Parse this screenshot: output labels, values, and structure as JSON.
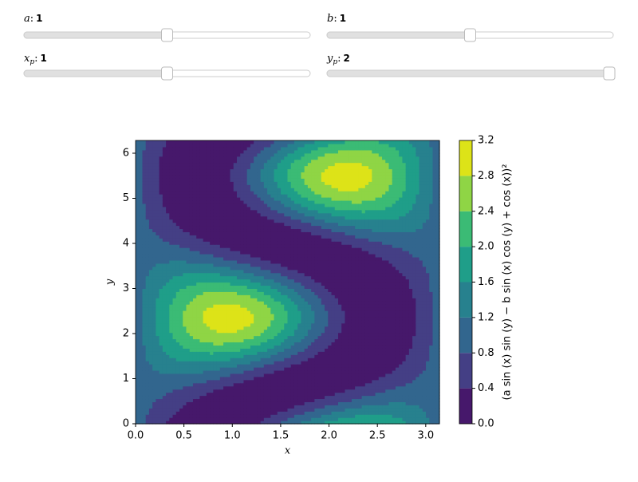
{
  "separator": ":",
  "sliders": [
    {
      "name": "a",
      "value": 1,
      "min": 0,
      "max": 2
    },
    {
      "name": "b",
      "value": 1,
      "min": 0,
      "max": 2
    },
    {
      "name": "x",
      "subscript": "p",
      "value": 1,
      "min": 0,
      "max": 2
    },
    {
      "name": "y",
      "subscript": "p",
      "value": 2,
      "min": 0,
      "max": 2
    }
  ],
  "chart_data": {
    "type": "contourf",
    "xlabel": "x",
    "ylabel": "y",
    "xlim": [
      0,
      3.14159
    ],
    "ylim": [
      0,
      6.28319
    ],
    "xticks": [
      {
        "value": 0,
        "label": "0.0"
      },
      0.5,
      {
        "value": 1,
        "label": "1.0"
      },
      1.5,
      {
        "value": 2,
        "label": "2.0"
      },
      2.5,
      {
        "value": 3,
        "label": "3.0"
      }
    ],
    "yticks": [
      0,
      1,
      2,
      3,
      4,
      5,
      6
    ],
    "colorbar_label": "(a sin (x) sin (y) − b sin (x) cos (y) + cos (x))²",
    "levels": [
      {
        "value": 0,
        "label": "0.0"
      },
      0.4,
      0.8,
      1.2,
      1.6,
      {
        "value": 2,
        "label": "2.0"
      },
      2.4,
      2.8,
      3.2
    ],
    "colors": [
      "#46186b",
      "#443f85",
      "#32668e",
      "#27818e",
      "#1f9e89",
      "#3bbb75",
      "#8fd545",
      "#dde318"
    ]
  }
}
